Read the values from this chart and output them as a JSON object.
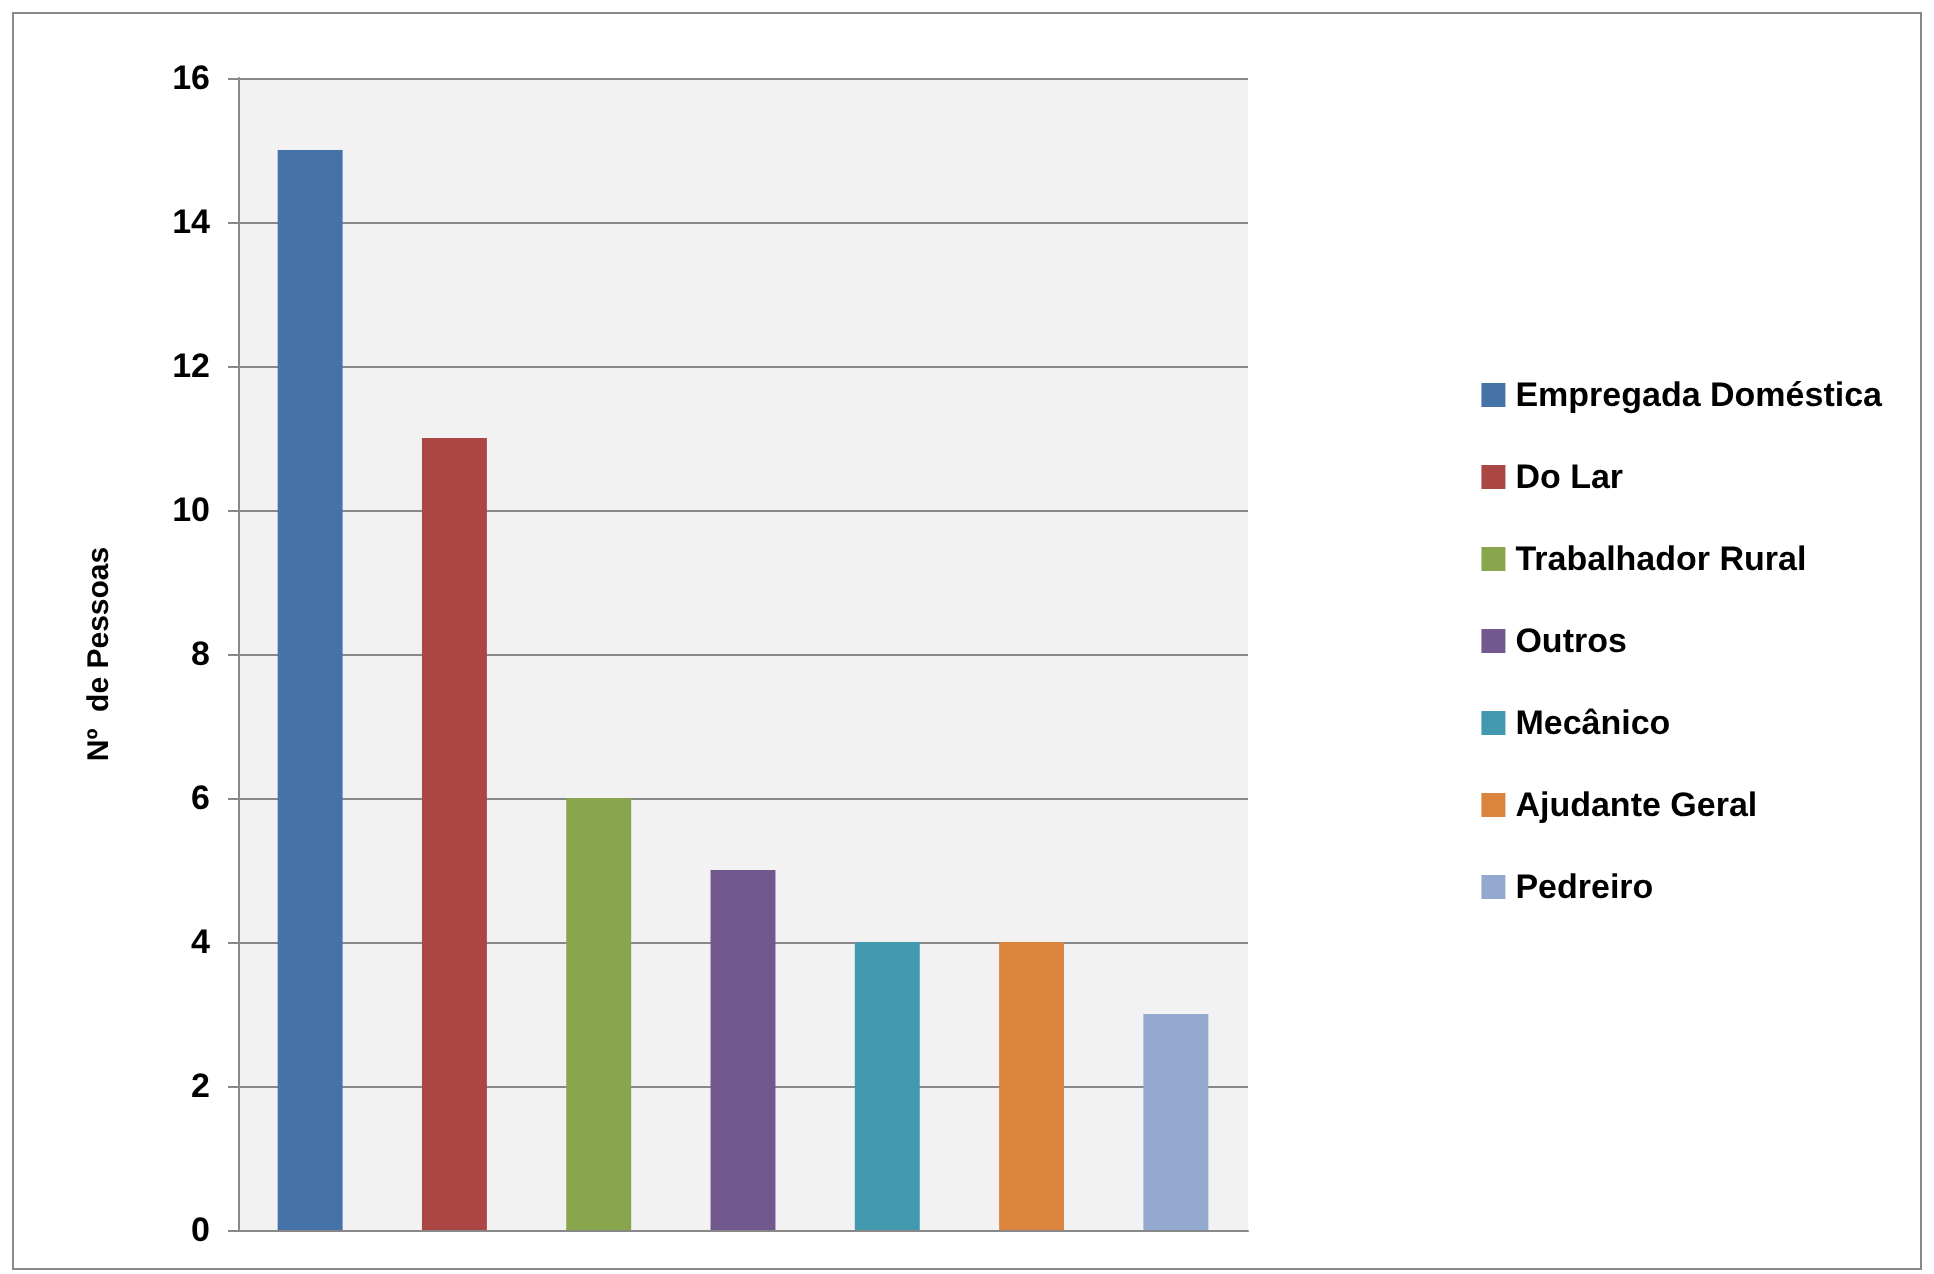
{
  "chart_data": {
    "type": "bar",
    "ylabel": "Nº  de Pessoas",
    "categories": [
      null,
      null,
      null,
      null,
      null,
      null,
      null
    ],
    "series": [
      {
        "name": "Empregada Doméstica",
        "color": "#4572a7",
        "values": [
          15,
          null,
          null,
          null,
          null,
          null,
          null
        ]
      },
      {
        "name": "Do Lar",
        "color": "#aa4643",
        "values": [
          null,
          11,
          null,
          null,
          null,
          null,
          null
        ]
      },
      {
        "name": "Trabalhador Rural",
        "color": "#89a54e",
        "values": [
          null,
          null,
          6,
          null,
          null,
          null,
          null
        ]
      },
      {
        "name": "Outros",
        "color": "#71588f",
        "values": [
          null,
          null,
          null,
          5,
          null,
          null,
          null
        ]
      },
      {
        "name": "Mecânico",
        "color": "#4198af",
        "values": [
          null,
          null,
          null,
          null,
          4,
          null,
          null
        ]
      },
      {
        "name": "Ajudante Geral",
        "color": "#db843d",
        "values": [
          null,
          null,
          null,
          null,
          null,
          4,
          null
        ]
      },
      {
        "name": "Pedreiro",
        "color": "#93a9cf",
        "values": [
          null,
          null,
          null,
          null,
          null,
          null,
          3
        ]
      }
    ],
    "ylim": [
      0,
      16
    ],
    "yticks": [
      0,
      2,
      4,
      6,
      8,
      10,
      12,
      14,
      16
    ],
    "grid": "y",
    "legend": "right",
    "tick_labels": "y"
  }
}
